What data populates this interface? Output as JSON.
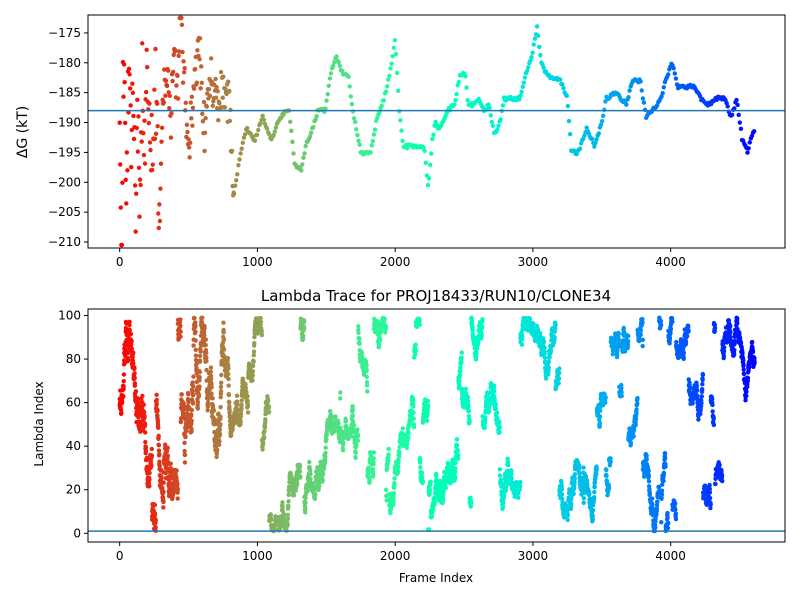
{
  "chart_data": [
    {
      "type": "scatter",
      "title": "",
      "xlabel": "",
      "ylabel": "ΔG (kT)",
      "xlim": [
        -230,
        4830
      ],
      "ylim": [
        -211,
        -172
      ],
      "xticks": [
        0,
        1000,
        2000,
        3000,
        4000
      ],
      "xtick_labels": [
        "0",
        "1000",
        "2000",
        "3000",
        "4000"
      ],
      "yticks": [
        -175,
        -180,
        -185,
        -190,
        -195,
        -200,
        -205,
        -210
      ],
      "ytick_labels": [
        "−175",
        "−180",
        "−185",
        "−190",
        "−195",
        "−200",
        "−205",
        "−210"
      ],
      "hline": {
        "y": -188,
        "color": "#1f77b4"
      },
      "colormap": "rainbow (reversed: red at frame 0, violet at last frame)",
      "grid": false,
      "anchors": [
        [
          0,
          -190
        ],
        [
          15,
          -210
        ],
        [
          25,
          -180
        ],
        [
          40,
          -190
        ],
        [
          50,
          -200
        ],
        [
          60,
          -186
        ],
        [
          75,
          -176
        ],
        [
          85,
          -195
        ],
        [
          100,
          -183
        ],
        [
          115,
          -205
        ],
        [
          130,
          -188
        ],
        [
          150,
          -204
        ],
        [
          165,
          -182
        ],
        [
          185,
          -195
        ],
        [
          200,
          -179
        ],
        [
          220,
          -188
        ],
        [
          240,
          -198
        ],
        [
          260,
          -183
        ],
        [
          285,
          -205
        ],
        [
          310,
          -186
        ],
        [
          340,
          -181
        ],
        [
          370,
          -190
        ],
        [
          390,
          -177
        ],
        [
          420,
          -185
        ],
        [
          440,
          -172
        ],
        [
          470,
          -183
        ],
        [
          500,
          -195
        ],
        [
          540,
          -184
        ],
        [
          580,
          -178
        ],
        [
          620,
          -193
        ],
        [
          660,
          -182
        ],
        [
          700,
          -187
        ],
        [
          760,
          -184
        ],
        [
          800,
          -188
        ],
        [
          830,
          -202
        ],
        [
          870,
          -196
        ],
        [
          920,
          -191
        ],
        [
          980,
          -193
        ],
        [
          1040,
          -189
        ],
        [
          1100,
          -193
        ],
        [
          1150,
          -190
        ],
        [
          1200,
          -188
        ],
        [
          1230,
          -188
        ],
        [
          1270,
          -197
        ],
        [
          1320,
          -198
        ],
        [
          1350,
          -194
        ],
        [
          1400,
          -191
        ],
        [
          1440,
          -188
        ],
        [
          1490,
          -188
        ],
        [
          1530,
          -182
        ],
        [
          1570,
          -179
        ],
        [
          1620,
          -182
        ],
        [
          1660,
          -182
        ],
        [
          1690,
          -188
        ],
        [
          1710,
          -190
        ],
        [
          1750,
          -195
        ],
        [
          1820,
          -195
        ],
        [
          1870,
          -189
        ],
        [
          1920,
          -186
        ],
        [
          1960,
          -182
        ],
        [
          2000,
          -176
        ],
        [
          2030,
          -188
        ],
        [
          2060,
          -194
        ],
        [
          2150,
          -194
        ],
        [
          2210,
          -194
        ],
        [
          2240,
          -201
        ],
        [
          2270,
          -193
        ],
        [
          2290,
          -190
        ],
        [
          2320,
          -191
        ],
        [
          2380,
          -188
        ],
        [
          2430,
          -187
        ],
        [
          2470,
          -182
        ],
        [
          2510,
          -182
        ],
        [
          2530,
          -187
        ],
        [
          2570,
          -187
        ],
        [
          2610,
          -186
        ],
        [
          2650,
          -188
        ],
        [
          2680,
          -187
        ],
        [
          2720,
          -192
        ],
        [
          2760,
          -190
        ],
        [
          2790,
          -186
        ],
        [
          2860,
          -186
        ],
        [
          2900,
          -186
        ],
        [
          2950,
          -182
        ],
        [
          3000,
          -178
        ],
        [
          3030,
          -174
        ],
        [
          3060,
          -180
        ],
        [
          3100,
          -182
        ],
        [
          3200,
          -183
        ],
        [
          3250,
          -186
        ],
        [
          3280,
          -195
        ],
        [
          3330,
          -195
        ],
        [
          3390,
          -191
        ],
        [
          3450,
          -194
        ],
        [
          3500,
          -190
        ],
        [
          3530,
          -186
        ],
        [
          3600,
          -185
        ],
        [
          3680,
          -187
        ],
        [
          3720,
          -183
        ],
        [
          3780,
          -183
        ],
        [
          3820,
          -189
        ],
        [
          3870,
          -188
        ],
        [
          3930,
          -186
        ],
        [
          3960,
          -183
        ],
        [
          4010,
          -180
        ],
        [
          4050,
          -184
        ],
        [
          4120,
          -184
        ],
        [
          4170,
          -184
        ],
        [
          4220,
          -186
        ],
        [
          4270,
          -187
        ],
        [
          4340,
          -186
        ],
        [
          4390,
          -186
        ],
        [
          4440,
          -189
        ],
        [
          4480,
          -186
        ],
        [
          4520,
          -193
        ],
        [
          4560,
          -195
        ],
        [
          4590,
          -192
        ],
        [
          4610,
          -191
        ]
      ]
    },
    {
      "type": "scatter",
      "title": "Lambda Trace for PROJ18433/RUN10/CLONE34",
      "xlabel": "Frame Index",
      "ylabel": "Lambda Index",
      "xlim": [
        -230,
        4830
      ],
      "ylim": [
        -4,
        103
      ],
      "xticks": [
        0,
        1000,
        2000,
        3000,
        4000
      ],
      "xtick_labels": [
        "0",
        "1000",
        "2000",
        "3000",
        "4000"
      ],
      "yticks": [
        0,
        20,
        40,
        60,
        80,
        100
      ],
      "ytick_labels": [
        "0",
        "20",
        "40",
        "60",
        "80",
        "100"
      ],
      "hline": {
        "y": 1,
        "color": "#1f77b4"
      },
      "colormap": "rainbow (reversed: red at frame 0, violet at last frame)",
      "grid": false,
      "x_range": [
        0,
        4610
      ],
      "y_range": [
        1,
        99
      ]
    }
  ]
}
